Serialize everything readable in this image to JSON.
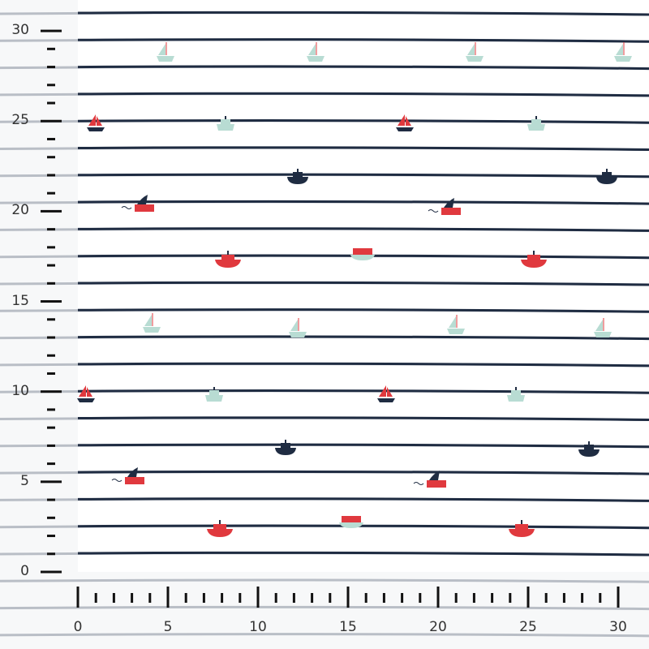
{
  "ruler": {
    "unit_range": [
      0,
      30
    ],
    "vertical_labels": [
      "0",
      "5",
      "10",
      "15",
      "20",
      "25",
      "30"
    ],
    "horizontal_labels": [
      "0",
      "5",
      "10",
      "15",
      "20",
      "25",
      "30"
    ]
  },
  "fabric": {
    "pattern": "navy stripes with small boats",
    "colors": {
      "background": "#ffffff",
      "stripe": "#1f2c42",
      "faded_stripe": "#b9bec6",
      "red": "#e0393e",
      "mint": "#b8dcd3",
      "navy": "#1f2c42"
    }
  }
}
